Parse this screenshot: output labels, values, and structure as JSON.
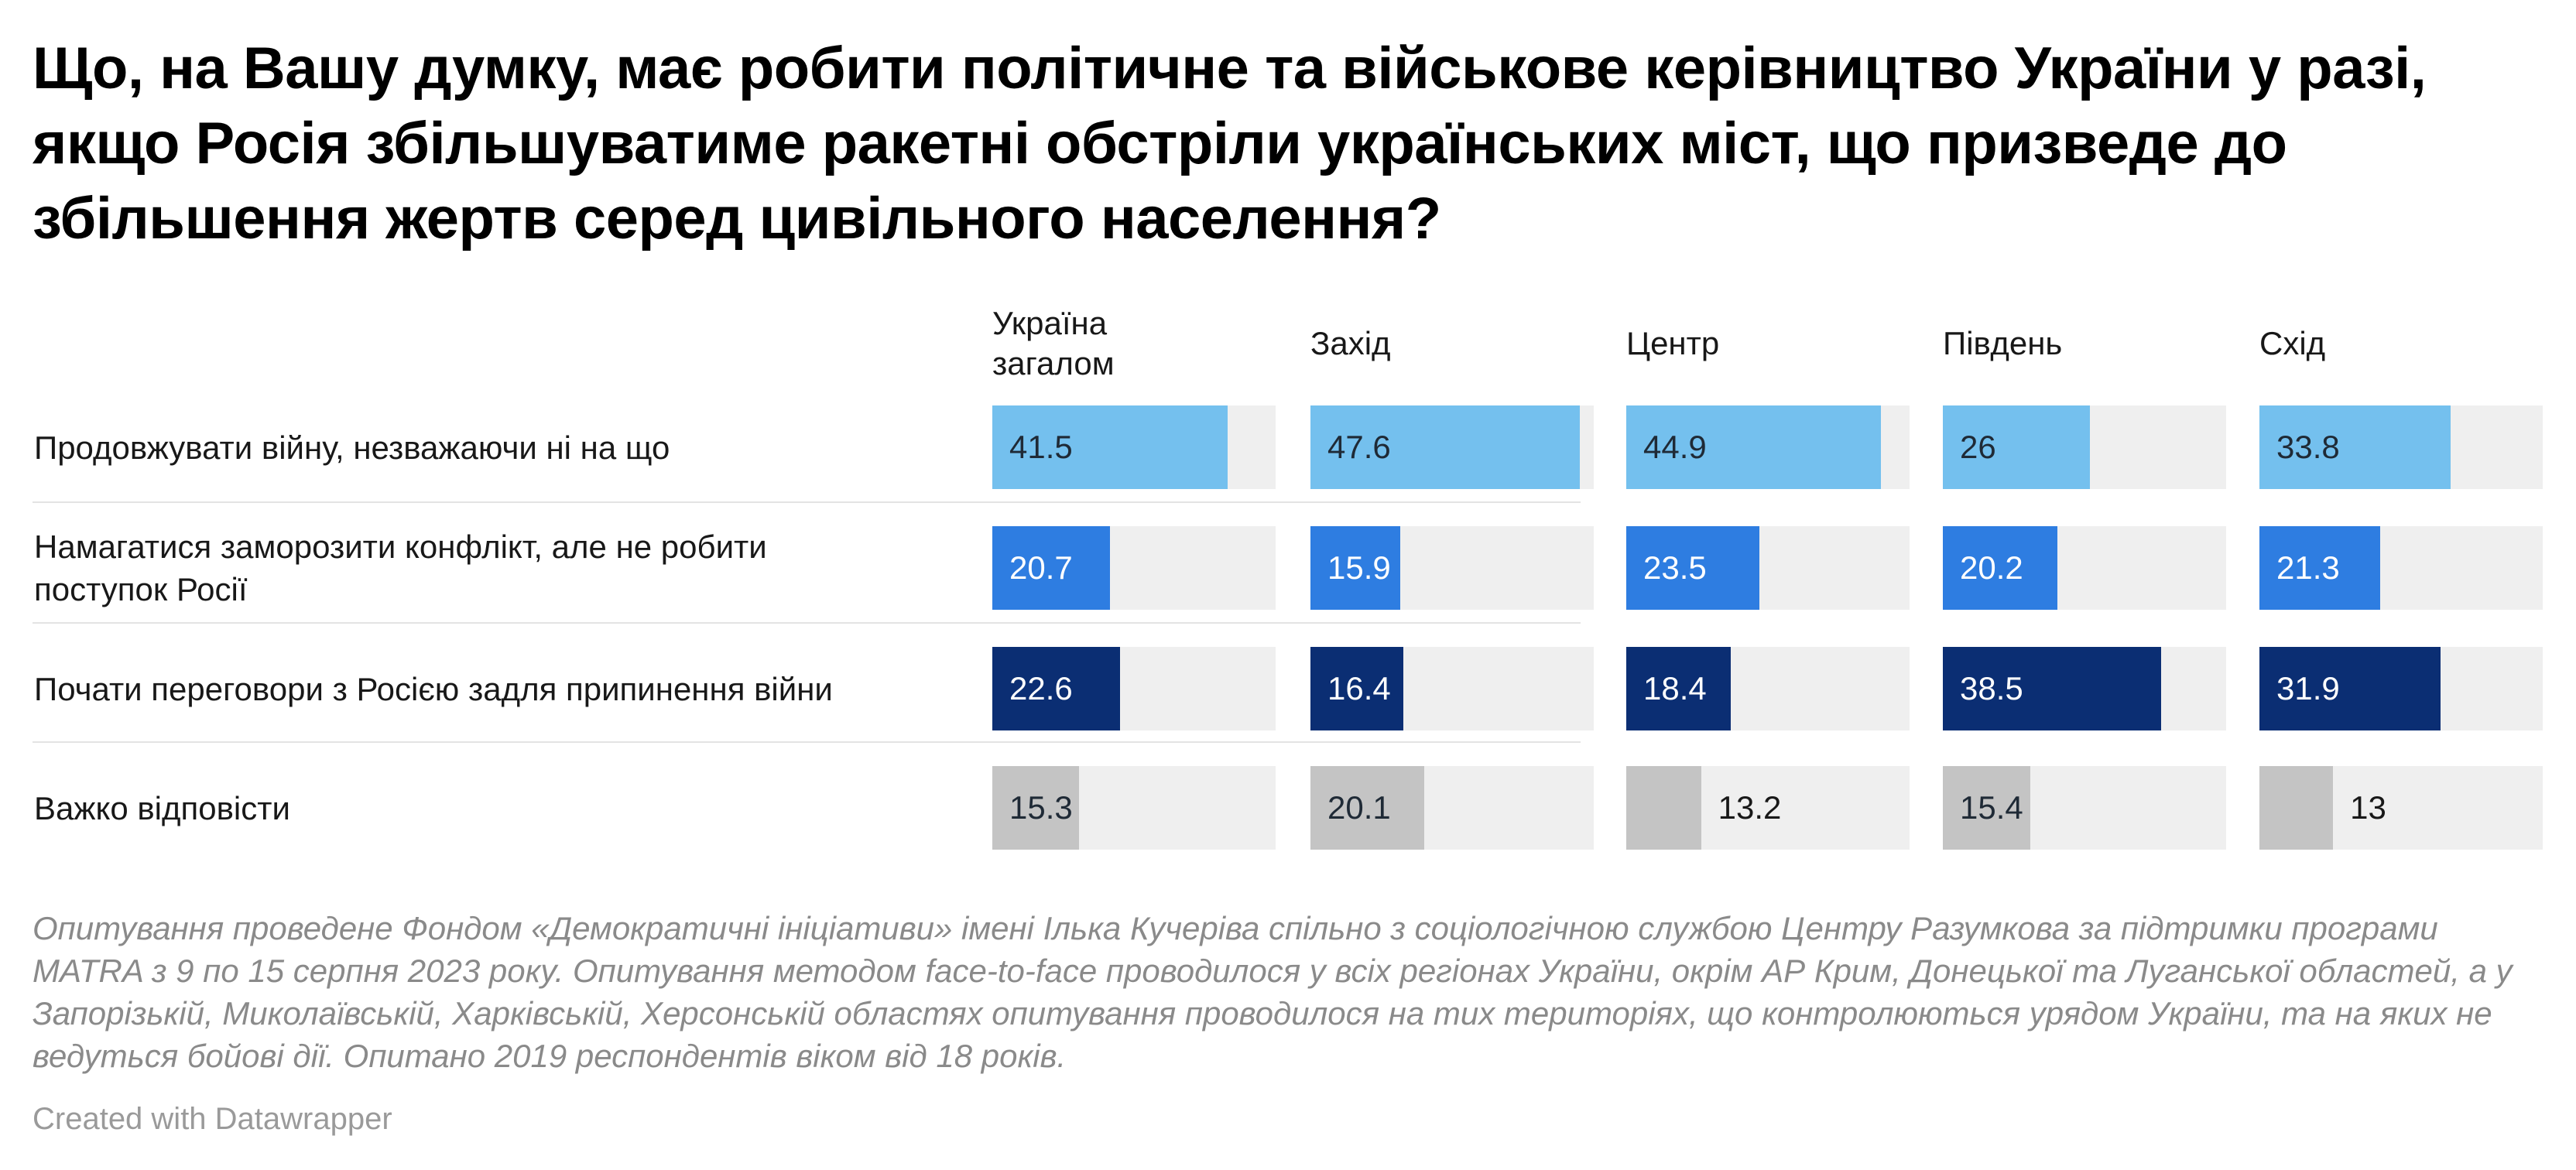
{
  "title": "Що, на Вашу думку, має робити політичне та військове керівництво України у разі, якщо Росія збільшуватиме ракетні обстріли українських міст, що призведе до збільшення жертв серед цивільного населення?",
  "notes": "Опитування проведене Фондом «Демократичні ініціативи» імені Ілька Кучеріва спільно з соціологічною службою Центру Разумкова за підтримки програми MATRA з 9 по 15 серпня 2023 року. Опитування методом face-to-face проводилося у всіх регіонах України, окрім АР Крим, Донецької та Луганської областей, а у Запорізькій, Миколаївській, Харківській, Херсонській областях опитування проводилося на тих територіях, що контролюються урядом України, та на яких не ведуться бойові дії. Опитано 2019 респондентів віком від 18 років.",
  "credit": "Created with Datawrapper",
  "chart_data": {
    "type": "bar",
    "title": "Що, на Вашу думку, має робити політичне та військове керівництво України у разі, якщо Росія збільшуватиме ракетні обстріли українських міст, що призведе до збільшення жертв серед цивільного населення?",
    "columns": [
      "Україна загалом",
      "Захід",
      "Центр",
      "Південь",
      "Схід"
    ],
    "xlim": [
      0,
      50
    ],
    "rows": [
      {
        "label": "Продовжувати війну, незважаючи ні на що",
        "values": [
          41.5,
          47.6,
          44.9,
          26,
          33.8
        ],
        "color": "#74c0ee"
      },
      {
        "label": "Намагатися заморозити конфлікт, але не робити поступок Росії",
        "values": [
          20.7,
          15.9,
          23.5,
          20.2,
          21.3
        ],
        "color": "#2e7de1"
      },
      {
        "label": "Почати переговори з Росією задля припинення війни",
        "values": [
          22.6,
          16.4,
          18.4,
          38.5,
          31.9
        ],
        "color": "#0b2e73"
      },
      {
        "label": "Важко відповісти",
        "values": [
          15.3,
          20.1,
          13.2,
          15.4,
          13
        ],
        "color": "#c4c4c4"
      }
    ]
  }
}
